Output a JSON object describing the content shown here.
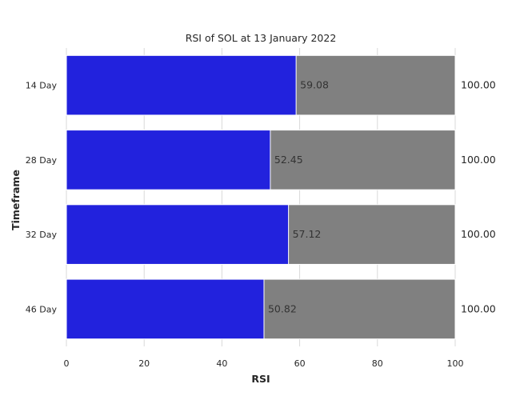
{
  "chart_data": {
    "type": "bar",
    "orientation": "horizontal",
    "title": "RSI of SOL at 13 January 2022",
    "xlabel": "RSI",
    "ylabel": "Timeframe",
    "categories": [
      "14 Day",
      "28 Day",
      "32 Day",
      "46 Day"
    ],
    "series": [
      {
        "values": [
          59.08,
          52.45,
          57.12,
          50.82
        ],
        "color": "#2222dd"
      },
      {
        "values": [
          100.0,
          100.0,
          100.0,
          100.0
        ],
        "color": "#808080"
      }
    ],
    "value_labels": [
      "59.08",
      "52.45",
      "57.12",
      "50.82"
    ],
    "total_labels": [
      "100.00",
      "100.00",
      "100.00",
      "100.00"
    ],
    "xlim": [
      0,
      100
    ],
    "xticks": [
      "0",
      "20",
      "40",
      "60",
      "80",
      "100"
    ],
    "grid": "vertical",
    "legend": "none"
  }
}
